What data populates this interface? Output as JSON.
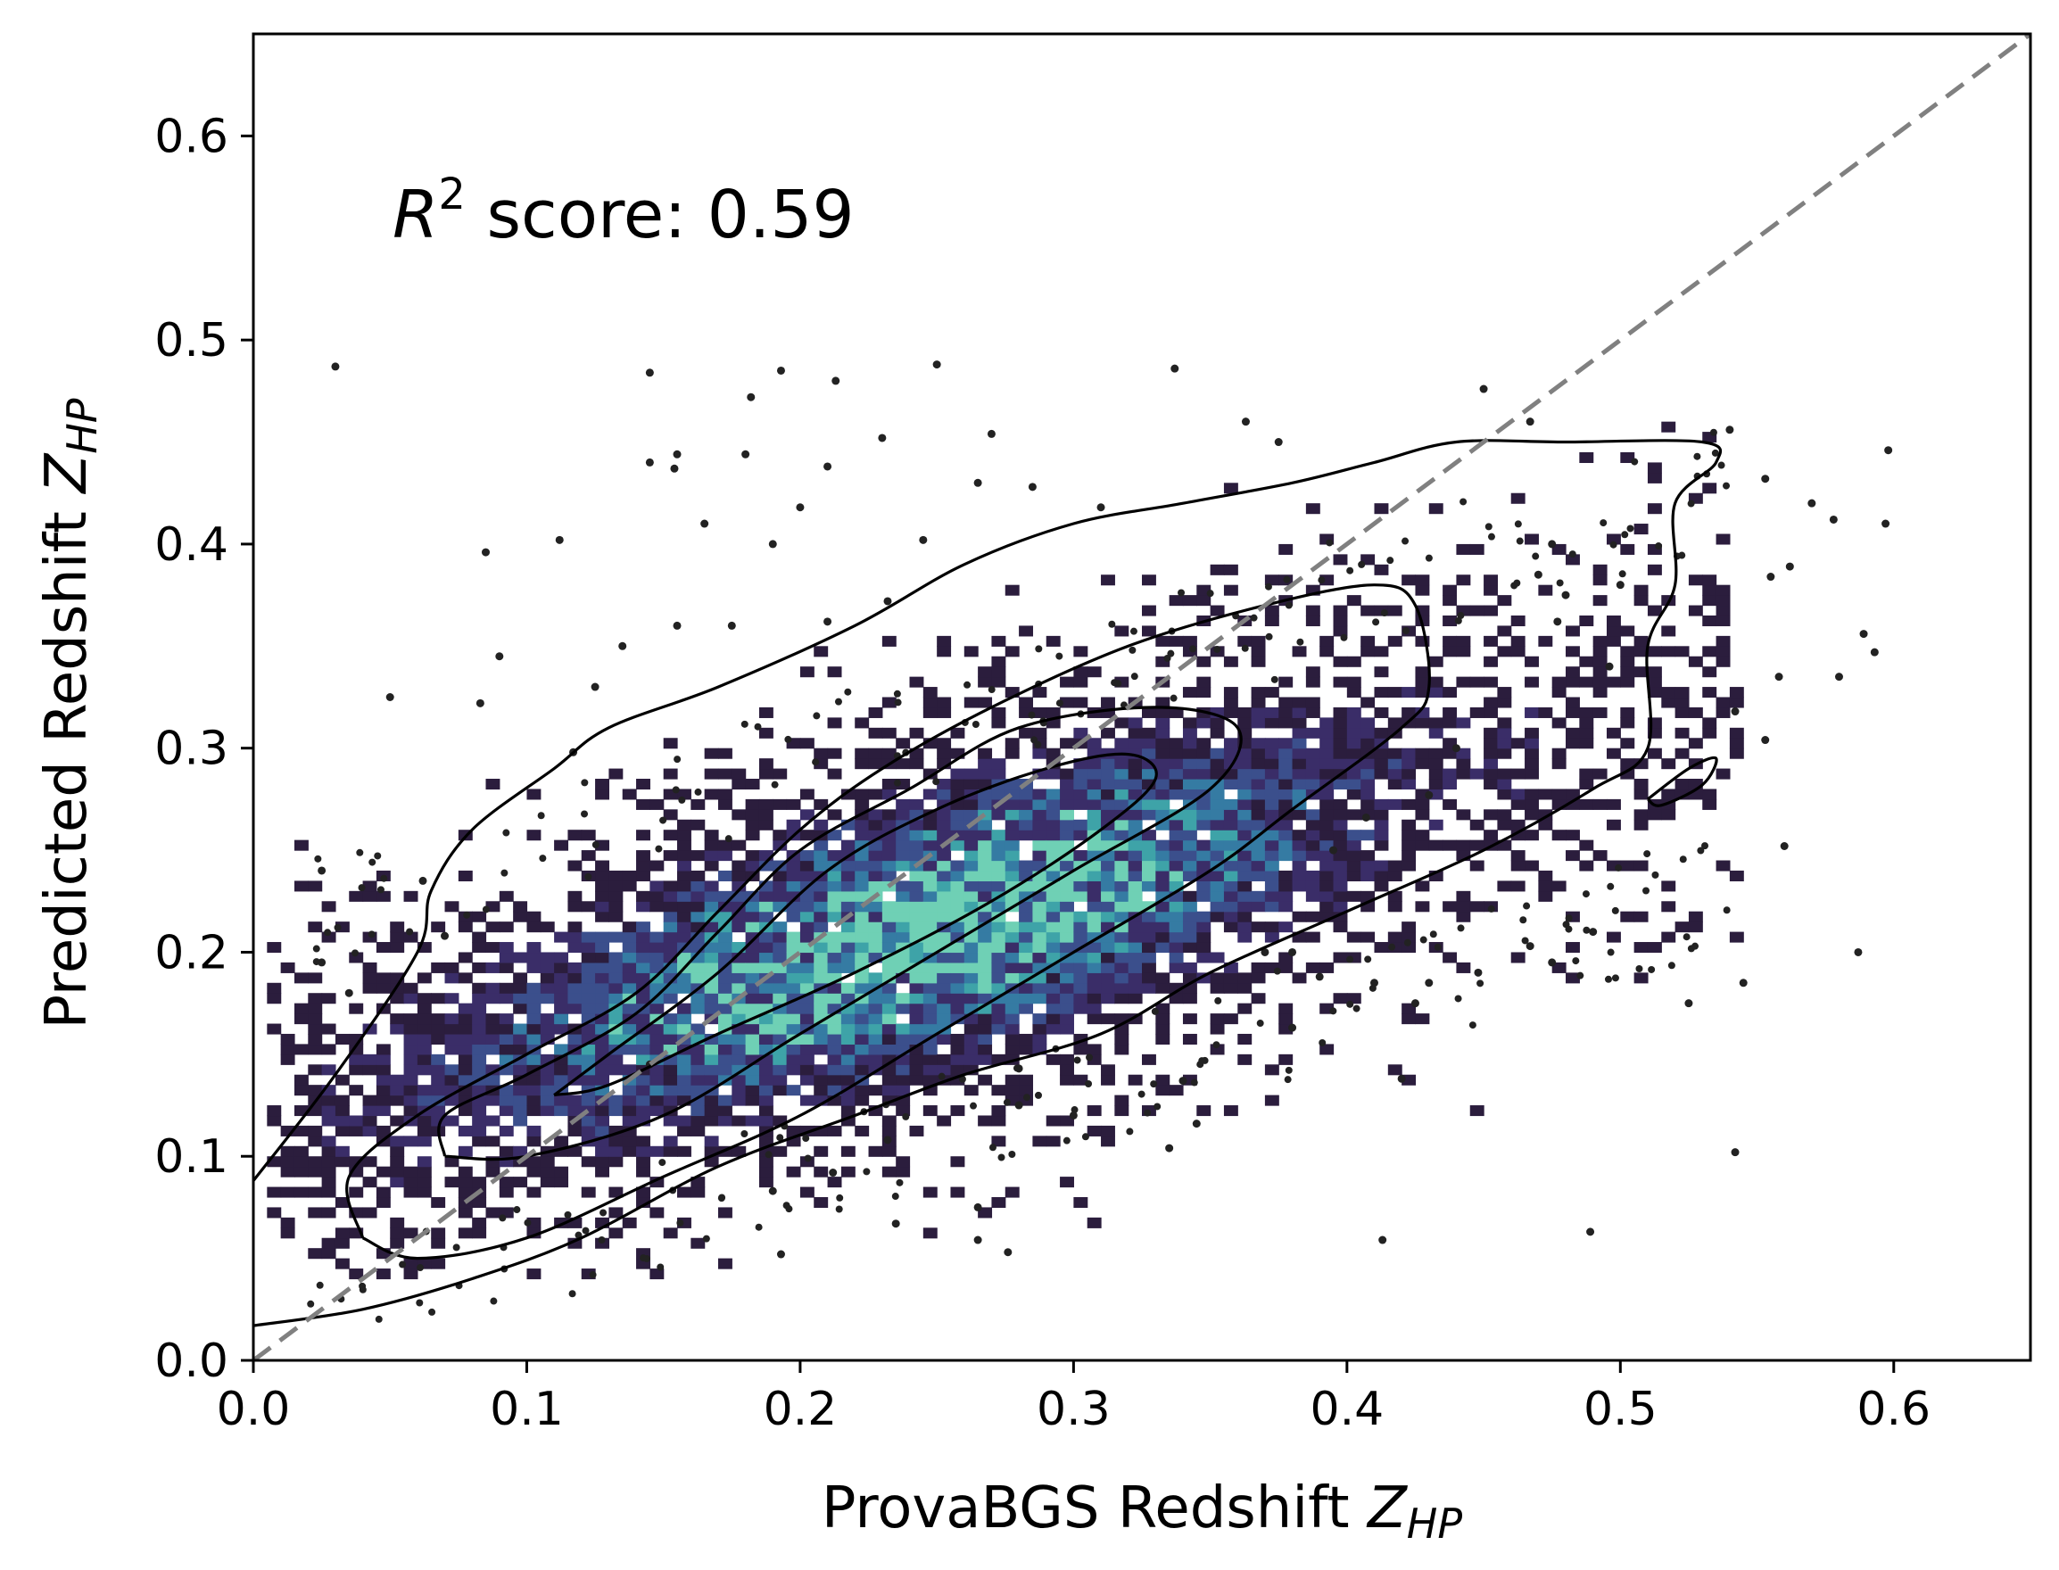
{
  "chart_data": {
    "type": "heatmap",
    "title": "",
    "xlabel_text": "ProvaBGS Redshift ",
    "xlabel_var": "Z",
    "xlabel_sub": "HP",
    "ylabel_text": "Predicted Redshift ",
    "ylabel_var": "Z",
    "ylabel_sub": "HP",
    "xlim": [
      0.0,
      0.65
    ],
    "ylim": [
      0.0,
      0.65
    ],
    "xticks": [
      0.0,
      0.1,
      0.2,
      0.3,
      0.4,
      0.5,
      0.6
    ],
    "xtick_labels": [
      "0.0",
      "0.1",
      "0.2",
      "0.3",
      "0.4",
      "0.5",
      "0.6"
    ],
    "yticks": [
      0.0,
      0.1,
      0.2,
      0.3,
      0.4,
      0.5,
      0.6
    ],
    "ytick_labels": [
      "0.0",
      "0.1",
      "0.2",
      "0.3",
      "0.4",
      "0.5",
      "0.6"
    ],
    "annotation": {
      "var": "R",
      "exp": "2",
      "text": " score: 0.59",
      "position": "top-left"
    },
    "reference_line": {
      "style": "dashed",
      "color": "#808080",
      "from": [
        0.0,
        0.0
      ],
      "to": [
        0.65,
        0.65
      ]
    },
    "grid": false,
    "colormap": [
      "#2b1d3d",
      "#3a2d68",
      "#3b4f8c",
      "#357ba3",
      "#3ea3a8",
      "#6fd0b5"
    ],
    "hist2d": {
      "bin_size": 0.005,
      "note_density_trend": "counts concentrated along y = 0.41x + 0.11, peak near x=0.25, y=0.25"
    },
    "contours": [
      {
        "level": "outer",
        "points": [
          [
            0.0,
            0.088
          ],
          [
            0.03,
            0.14
          ],
          [
            0.06,
            0.2
          ],
          [
            0.065,
            0.23
          ],
          [
            0.08,
            0.26
          ],
          [
            0.11,
            0.29
          ],
          [
            0.13,
            0.31
          ],
          [
            0.17,
            0.33
          ],
          [
            0.22,
            0.36
          ],
          [
            0.26,
            0.39
          ],
          [
            0.3,
            0.41
          ],
          [
            0.34,
            0.42
          ],
          [
            0.38,
            0.43
          ],
          [
            0.41,
            0.44
          ],
          [
            0.44,
            0.45
          ],
          [
            0.48,
            0.45
          ],
          [
            0.53,
            0.45
          ],
          [
            0.535,
            0.44
          ],
          [
            0.52,
            0.42
          ],
          [
            0.52,
            0.38
          ],
          [
            0.51,
            0.35
          ],
          [
            0.51,
            0.3
          ],
          [
            0.49,
            0.28
          ],
          [
            0.45,
            0.25
          ],
          [
            0.4,
            0.22
          ],
          [
            0.35,
            0.19
          ],
          [
            0.31,
            0.16
          ],
          [
            0.26,
            0.14
          ],
          [
            0.22,
            0.12
          ],
          [
            0.17,
            0.095
          ],
          [
            0.12,
            0.06
          ],
          [
            0.08,
            0.04
          ],
          [
            0.04,
            0.025
          ],
          [
            0.0,
            0.017
          ]
        ]
      },
      {
        "level": "second",
        "points": [
          [
            0.04,
            0.06
          ],
          [
            0.035,
            0.09
          ],
          [
            0.06,
            0.12
          ],
          [
            0.1,
            0.15
          ],
          [
            0.14,
            0.18
          ],
          [
            0.17,
            0.22
          ],
          [
            0.2,
            0.26
          ],
          [
            0.23,
            0.29
          ],
          [
            0.27,
            0.32
          ],
          [
            0.32,
            0.35
          ],
          [
            0.37,
            0.37
          ],
          [
            0.41,
            0.38
          ],
          [
            0.425,
            0.37
          ],
          [
            0.43,
            0.33
          ],
          [
            0.42,
            0.31
          ],
          [
            0.38,
            0.27
          ],
          [
            0.35,
            0.24
          ],
          [
            0.3,
            0.2
          ],
          [
            0.25,
            0.16
          ],
          [
            0.2,
            0.12
          ],
          [
            0.15,
            0.09
          ],
          [
            0.1,
            0.06
          ],
          [
            0.06,
            0.05
          ],
          [
            0.04,
            0.06
          ]
        ]
      },
      {
        "level": "third",
        "points": [
          [
            0.07,
            0.1
          ],
          [
            0.07,
            0.12
          ],
          [
            0.1,
            0.14
          ],
          [
            0.14,
            0.17
          ],
          [
            0.17,
            0.21
          ],
          [
            0.2,
            0.25
          ],
          [
            0.24,
            0.28
          ],
          [
            0.28,
            0.31
          ],
          [
            0.33,
            0.32
          ],
          [
            0.36,
            0.31
          ],
          [
            0.35,
            0.28
          ],
          [
            0.3,
            0.24
          ],
          [
            0.25,
            0.2
          ],
          [
            0.2,
            0.16
          ],
          [
            0.15,
            0.12
          ],
          [
            0.1,
            0.1
          ],
          [
            0.07,
            0.1
          ]
        ]
      },
      {
        "level": "inner",
        "points": [
          [
            0.11,
            0.13
          ],
          [
            0.13,
            0.15
          ],
          [
            0.17,
            0.19
          ],
          [
            0.21,
            0.24
          ],
          [
            0.25,
            0.27
          ],
          [
            0.29,
            0.29
          ],
          [
            0.32,
            0.297
          ],
          [
            0.33,
            0.285
          ],
          [
            0.31,
            0.26
          ],
          [
            0.27,
            0.225
          ],
          [
            0.22,
            0.19
          ],
          [
            0.17,
            0.16
          ],
          [
            0.13,
            0.135
          ],
          [
            0.11,
            0.13
          ]
        ]
      },
      {
        "level": "island",
        "points": [
          [
            0.51,
            0.275
          ],
          [
            0.525,
            0.29
          ],
          [
            0.535,
            0.295
          ],
          [
            0.53,
            0.282
          ],
          [
            0.515,
            0.272
          ],
          [
            0.51,
            0.275
          ]
        ]
      }
    ],
    "scatter_outliers": [
      [
        0.03,
        0.487
      ],
      [
        0.145,
        0.484
      ],
      [
        0.155,
        0.444
      ],
      [
        0.193,
        0.485
      ],
      [
        0.182,
        0.472
      ],
      [
        0.213,
        0.48
      ],
      [
        0.25,
        0.488
      ],
      [
        0.337,
        0.486
      ],
      [
        0.45,
        0.476
      ],
      [
        0.467,
        0.46
      ],
      [
        0.363,
        0.46
      ],
      [
        0.27,
        0.454
      ],
      [
        0.23,
        0.452
      ],
      [
        0.154,
        0.437
      ],
      [
        0.145,
        0.44
      ],
      [
        0.18,
        0.444
      ],
      [
        0.21,
        0.438
      ],
      [
        0.265,
        0.43
      ],
      [
        0.285,
        0.428
      ],
      [
        0.31,
        0.418
      ],
      [
        0.085,
        0.396
      ],
      [
        0.112,
        0.402
      ],
      [
        0.245,
        0.402
      ],
      [
        0.375,
        0.45
      ],
      [
        0.54,
        0.456
      ],
      [
        0.553,
        0.432
      ],
      [
        0.57,
        0.42
      ],
      [
        0.578,
        0.412
      ],
      [
        0.598,
        0.446
      ],
      [
        0.597,
        0.41
      ],
      [
        0.562,
        0.389
      ],
      [
        0.555,
        0.384
      ],
      [
        0.589,
        0.356
      ],
      [
        0.593,
        0.347
      ],
      [
        0.58,
        0.335
      ],
      [
        0.558,
        0.335
      ],
      [
        0.553,
        0.304
      ],
      [
        0.542,
        0.318
      ],
      [
        0.56,
        0.252
      ],
      [
        0.545,
        0.185
      ],
      [
        0.587,
        0.2
      ],
      [
        0.525,
        0.175
      ],
      [
        0.542,
        0.102
      ],
      [
        0.489,
        0.063
      ],
      [
        0.413,
        0.059
      ],
      [
        0.276,
        0.053
      ],
      [
        0.265,
        0.059
      ],
      [
        0.193,
        0.052
      ],
      [
        0.235,
        0.067
      ],
      [
        0.265,
        0.075
      ],
      [
        0.335,
        0.104
      ],
      [
        0.345,
        0.116
      ],
      [
        0.34,
        0.137
      ],
      [
        0.42,
        0.138
      ],
      [
        0.425,
        0.175
      ],
      [
        0.475,
        0.195
      ],
      [
        0.49,
        0.21
      ],
      [
        0.467,
        0.203
      ],
      [
        0.38,
        0.2
      ],
      [
        0.37,
        0.2
      ],
      [
        0.448,
        0.19
      ],
      [
        0.43,
        0.185
      ],
      [
        0.09,
        0.345
      ],
      [
        0.083,
        0.322
      ],
      [
        0.05,
        0.325
      ],
      [
        0.062,
        0.235
      ],
      [
        0.07,
        0.208
      ],
      [
        0.025,
        0.24
      ],
      [
        0.035,
        0.18
      ],
      [
        0.025,
        0.195
      ],
      [
        0.145,
        0.145
      ],
      [
        0.212,
        0.092
      ],
      [
        0.19,
        0.083
      ],
      [
        0.232,
        0.108
      ],
      [
        0.28,
        0.125
      ],
      [
        0.3,
        0.12
      ],
      [
        0.28,
        0.143
      ],
      [
        0.38,
        0.163
      ],
      [
        0.39,
        0.188
      ],
      [
        0.41,
        0.185
      ],
      [
        0.395,
        0.25
      ],
      [
        0.407,
        0.266
      ],
      [
        0.43,
        0.277
      ],
      [
        0.44,
        0.3
      ],
      [
        0.477,
        0.362
      ],
      [
        0.48,
        0.375
      ],
      [
        0.47,
        0.385
      ],
      [
        0.475,
        0.4
      ],
      [
        0.496,
        0.34
      ],
      [
        0.5,
        0.38
      ],
      [
        0.2,
        0.418
      ],
      [
        0.21,
        0.362
      ],
      [
        0.232,
        0.372
      ],
      [
        0.175,
        0.36
      ],
      [
        0.155,
        0.36
      ],
      [
        0.125,
        0.33
      ],
      [
        0.117,
        0.298
      ],
      [
        0.135,
        0.35
      ],
      [
        0.165,
        0.41
      ],
      [
        0.19,
        0.4
      ]
    ]
  }
}
